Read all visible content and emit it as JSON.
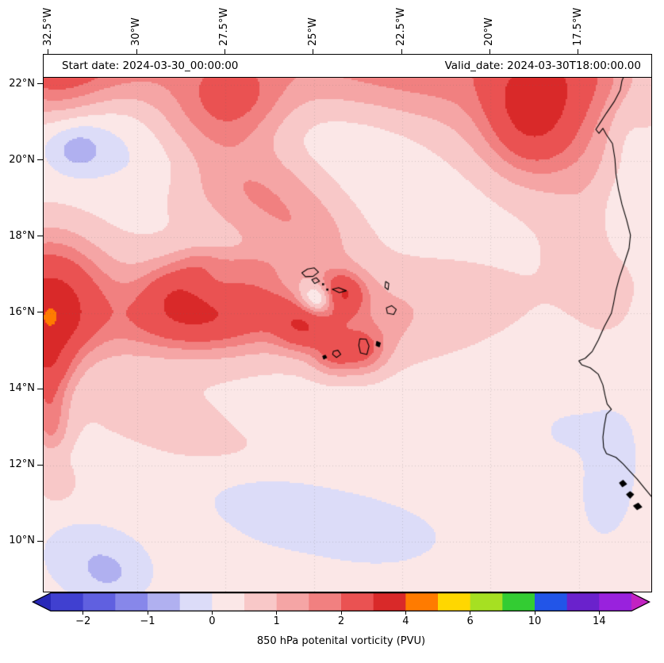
{
  "figure": {
    "start_date_label": "Start date: 2024-03-30_00:00:00",
    "valid_date_label": "Valid_date: 2024-03-30T18:00:00.00",
    "colorbar_label": "850 hPa potenital vorticity (PVU)"
  },
  "axes": {
    "top_tick_labels": [
      {
        "label": "32.5°W",
        "lon": -32.5
      },
      {
        "label": "30°W",
        "lon": -30
      },
      {
        "label": "27.5°W",
        "lon": -27.5
      },
      {
        "label": "25°W",
        "lon": -25
      },
      {
        "label": "22.5°W",
        "lon": -22.5
      },
      {
        "label": "20°W",
        "lon": -20
      },
      {
        "label": "17.5°W",
        "lon": -17.5
      }
    ],
    "left_tick_labels": [
      {
        "label": "22°N",
        "lat": 22
      },
      {
        "label": "20°N",
        "lat": 20
      },
      {
        "label": "18°N",
        "lat": 18
      },
      {
        "label": "16°N",
        "lat": 16
      },
      {
        "label": "14°N",
        "lat": 14
      },
      {
        "label": "12°N",
        "lat": 12
      },
      {
        "label": "10°N",
        "lat": 10
      }
    ],
    "grid_lons": [
      -30,
      -27.5,
      -25,
      -22.5,
      -20,
      -17.5
    ],
    "grid_lats": [
      10,
      12,
      14,
      16,
      18,
      20,
      22
    ]
  },
  "chart_data": {
    "type": "heatmap",
    "title": "850 hPa potenital vorticity (PVU)",
    "units": "PVU",
    "lon_range": [
      -32.65,
      -15.45
    ],
    "lat_range": [
      8.7,
      22.78
    ],
    "levels": [
      -2.5,
      -2,
      -1.5,
      -1,
      -0.5,
      0,
      0.5,
      1,
      1.5,
      2,
      3,
      4,
      5,
      6,
      8,
      10,
      12,
      14,
      16
    ],
    "segment_colors": [
      "#4040d0",
      "#6060e0",
      "#8787ea",
      "#b0b0f0",
      "#dcdcf8",
      "#fbe7e7",
      "#f8c8c8",
      "#f5a5a5",
      "#f18080",
      "#ea5252",
      "#d92929",
      "#ff7b00",
      "#ffd700",
      "#a6e022",
      "#33cc33",
      "#2255e8",
      "#6a22cc",
      "#9922dd"
    ],
    "under_color": "#2828b8",
    "over_color": "#c222c2",
    "colorbar_ticks": [
      {
        "label": "−2",
        "value": -2
      },
      {
        "label": "−1",
        "value": -1
      },
      {
        "label": "0",
        "value": 0
      },
      {
        "label": "1",
        "value": 1
      },
      {
        "label": "2",
        "value": 2
      },
      {
        "label": "4",
        "value": 4
      },
      {
        "label": "6",
        "value": 6
      },
      {
        "label": "10",
        "value": 10
      },
      {
        "label": "14",
        "value": 14
      }
    ],
    "field_base": 0.3,
    "field_blobs_format": "[lon_deg, lat_deg, sigma_lon_deg, sigma_lat_deg, amplitude_PVU]",
    "field_blobs": [
      [
        -27.0,
        23.3,
        6.0,
        1.6,
        0.95
      ],
      [
        -32.4,
        22.4,
        1.1,
        1.0,
        1.6
      ],
      [
        -27.2,
        21.6,
        1.0,
        0.75,
        1.2
      ],
      [
        -30.5,
        22.8,
        1.5,
        0.9,
        0.7
      ],
      [
        -18.8,
        21.4,
        0.9,
        1.1,
        2.5
      ],
      [
        -20.8,
        22.3,
        1.8,
        1.0,
        0.7
      ],
      [
        -17.3,
        22.4,
        1.0,
        0.8,
        0.9
      ],
      [
        -23.5,
        22.6,
        2.0,
        1.0,
        0.55
      ],
      [
        -28.6,
        21.2,
        1.3,
        0.85,
        0.6
      ],
      [
        -27.8,
        20.1,
        1.3,
        0.9,
        0.8
      ],
      [
        -26.6,
        19.2,
        1.2,
        0.85,
        0.75
      ],
      [
        -25.5,
        18.4,
        1.1,
        0.8,
        0.6
      ],
      [
        -24.8,
        17.8,
        1.0,
        0.7,
        0.4
      ],
      [
        -19.5,
        20.3,
        2.0,
        1.2,
        0.5
      ],
      [
        -30.0,
        16.1,
        3.5,
        1.0,
        1.0
      ],
      [
        -32.5,
        16.5,
        1.0,
        1.1,
        2.2
      ],
      [
        -32.5,
        15.6,
        0.7,
        0.6,
        1.2
      ],
      [
        -28.9,
        16.65,
        0.65,
        0.5,
        1.2
      ],
      [
        -28.4,
        15.8,
        1.3,
        0.55,
        1.4
      ],
      [
        -26.8,
        16.1,
        1.4,
        0.7,
        0.7
      ],
      [
        -25.3,
        15.65,
        0.55,
        0.45,
        1.7
      ],
      [
        -24.25,
        16.5,
        0.45,
        0.38,
        2.2
      ],
      [
        -23.0,
        15.9,
        1.4,
        0.8,
        0.45
      ],
      [
        -20.8,
        16.2,
        2.2,
        1.1,
        0.3
      ],
      [
        -24.0,
        15.2,
        0.8,
        0.6,
        0.6
      ],
      [
        -23.6,
        15.0,
        0.45,
        0.4,
        1.1
      ],
      [
        -24.45,
        14.85,
        0.4,
        0.33,
        1.0
      ],
      [
        -25.8,
        16.55,
        1.2,
        0.6,
        0.5
      ],
      [
        -24.85,
        16.35,
        0.38,
        0.3,
        -2.3
      ],
      [
        -25.4,
        16.78,
        0.5,
        0.35,
        -0.5
      ],
      [
        -32.55,
        14.55,
        0.5,
        0.5,
        1.6
      ],
      [
        -32.5,
        13.6,
        0.4,
        0.45,
        1.1
      ],
      [
        -32.45,
        12.85,
        0.35,
        0.4,
        0.9
      ],
      [
        -32.3,
        11.6,
        0.35,
        0.4,
        0.5
      ],
      [
        -17.2,
        20.2,
        1.0,
        2.2,
        0.45
      ],
      [
        -16.6,
        17.5,
        0.8,
        2.0,
        0.25
      ],
      [
        -30.8,
        21.0,
        2.4,
        0.8,
        -0.7
      ],
      [
        -31.7,
        20.3,
        0.55,
        0.45,
        -0.8
      ],
      [
        -29.2,
        19.9,
        1.6,
        0.6,
        -0.4
      ],
      [
        -24.5,
        20.8,
        2.5,
        0.8,
        -0.35
      ],
      [
        -16.3,
        18.7,
        0.55,
        0.9,
        -0.55
      ],
      [
        -16.2,
        20.6,
        0.4,
        0.7,
        -0.3
      ],
      [
        -16.5,
        12.2,
        0.5,
        0.9,
        -0.5
      ],
      [
        -16.8,
        11.1,
        0.45,
        0.7,
        -0.45
      ],
      [
        -31.4,
        9.8,
        1.0,
        0.8,
        -0.55
      ],
      [
        -30.7,
        9.1,
        0.7,
        0.5,
        -0.5
      ],
      [
        -24.9,
        10.6,
        1.6,
        0.55,
        -0.5
      ],
      [
        -26.6,
        11.2,
        1.2,
        0.45,
        -0.35
      ],
      [
        -23.0,
        10.1,
        1.1,
        0.45,
        -0.35
      ],
      [
        -21.5,
        19.3,
        2.2,
        0.9,
        -0.25
      ],
      [
        -24.0,
        9.3,
        6.0,
        1.2,
        -0.15
      ],
      [
        -19.0,
        14.0,
        3.0,
        1.5,
        -0.1
      ],
      [
        -22.5,
        12.7,
        2.5,
        1.0,
        -0.1
      ],
      [
        -29.5,
        13.3,
        2.0,
        0.6,
        0.25
      ],
      [
        -27.5,
        12.4,
        1.8,
        0.5,
        0.2
      ],
      [
        -31.0,
        11.0,
        1.2,
        0.6,
        0.2
      ],
      [
        -28.2,
        17.35,
        0.5,
        0.3,
        0.6
      ],
      [
        -27.0,
        17.2,
        0.6,
        0.3,
        0.5
      ],
      [
        -17.6,
        12.9,
        0.8,
        0.5,
        -0.3
      ]
    ],
    "coastlines": {
      "africa": [
        [
          -16.05,
          22.8
        ],
        [
          -16.12,
          22.45
        ],
        [
          -16.28,
          22.1
        ],
        [
          -16.33,
          21.85
        ],
        [
          -16.5,
          21.55
        ],
        [
          -16.72,
          21.25
        ],
        [
          -16.88,
          21.02
        ],
        [
          -17.02,
          20.82
        ],
        [
          -16.93,
          20.72
        ],
        [
          -16.82,
          20.85
        ],
        [
          -16.72,
          20.68
        ],
        [
          -16.55,
          20.45
        ],
        [
          -16.48,
          20.05
        ],
        [
          -16.45,
          19.65
        ],
        [
          -16.38,
          19.25
        ],
        [
          -16.28,
          18.85
        ],
        [
          -16.15,
          18.45
        ],
        [
          -16.04,
          18.05
        ],
        [
          -16.08,
          17.7
        ],
        [
          -16.22,
          17.3
        ],
        [
          -16.35,
          16.95
        ],
        [
          -16.45,
          16.6
        ],
        [
          -16.52,
          16.25
        ],
        [
          -16.58,
          16.0
        ],
        [
          -16.78,
          15.65
        ],
        [
          -16.95,
          15.3
        ],
        [
          -17.12,
          15.0
        ],
        [
          -17.32,
          14.82
        ],
        [
          -17.5,
          14.75
        ],
        [
          -17.42,
          14.65
        ],
        [
          -17.18,
          14.57
        ],
        [
          -16.95,
          14.4
        ],
        [
          -16.82,
          14.12
        ],
        [
          -16.76,
          13.85
        ],
        [
          -16.7,
          13.62
        ],
        [
          -16.58,
          13.48
        ],
        [
          -16.72,
          13.35
        ],
        [
          -16.78,
          13.05
        ],
        [
          -16.82,
          12.75
        ],
        [
          -16.8,
          12.48
        ],
        [
          -16.72,
          12.32
        ],
        [
          -16.45,
          12.22
        ],
        [
          -16.25,
          12.05
        ],
        [
          -16.05,
          11.85
        ],
        [
          -15.85,
          11.65
        ],
        [
          -15.65,
          11.42
        ],
        [
          -15.45,
          11.2
        ]
      ],
      "cape_verde_stroked": [
        [
          [
            -25.34,
            17.06
          ],
          [
            -25.18,
            17.16
          ],
          [
            -24.99,
            17.19
          ],
          [
            -24.87,
            17.08
          ],
          [
            -25.02,
            16.97
          ],
          [
            -25.24,
            16.96
          ]
        ],
        [
          [
            -25.06,
            16.88
          ],
          [
            -24.93,
            16.93
          ],
          [
            -24.84,
            16.84
          ],
          [
            -24.98,
            16.78
          ]
        ],
        [
          [
            -24.48,
            16.63
          ],
          [
            -24.3,
            16.67
          ],
          [
            -24.08,
            16.59
          ],
          [
            -24.28,
            16.54
          ]
        ],
        [
          [
            -22.97,
            16.83
          ],
          [
            -22.88,
            16.78
          ],
          [
            -22.9,
            16.62
          ],
          [
            -22.99,
            16.68
          ]
        ],
        [
          [
            -22.95,
            16.14
          ],
          [
            -22.8,
            16.2
          ],
          [
            -22.67,
            16.1
          ],
          [
            -22.74,
            15.97
          ],
          [
            -22.92,
            16.0
          ]
        ],
        [
          [
            -23.7,
            15.33
          ],
          [
            -23.52,
            15.32
          ],
          [
            -23.44,
            15.14
          ],
          [
            -23.5,
            14.92
          ],
          [
            -23.68,
            14.96
          ],
          [
            -23.73,
            15.16
          ]
        ],
        [
          [
            -24.45,
            15.0
          ],
          [
            -24.32,
            15.03
          ],
          [
            -24.24,
            14.92
          ],
          [
            -24.36,
            14.84
          ],
          [
            -24.47,
            14.92
          ]
        ]
      ],
      "filled_islands": [
        [
          [
            -24.75,
            14.87
          ],
          [
            -24.68,
            14.9
          ],
          [
            -24.64,
            14.84
          ],
          [
            -24.72,
            14.8
          ]
        ],
        [
          [
            -23.22,
            15.26
          ],
          [
            -23.12,
            15.22
          ],
          [
            -23.15,
            15.12
          ],
          [
            -23.24,
            15.16
          ]
        ],
        [
          [
            -16.15,
            11.25
          ],
          [
            -16.05,
            11.32
          ],
          [
            -15.95,
            11.25
          ],
          [
            -16.05,
            11.15
          ]
        ],
        [
          [
            -15.95,
            10.95
          ],
          [
            -15.82,
            11.02
          ],
          [
            -15.72,
            10.92
          ],
          [
            -15.85,
            10.85
          ]
        ],
        [
          [
            -16.35,
            11.55
          ],
          [
            -16.25,
            11.62
          ],
          [
            -16.15,
            11.52
          ],
          [
            -16.27,
            11.45
          ]
        ]
      ],
      "islet_dots": [
        [
          -24.74,
          16.76
        ],
        [
          -24.62,
          16.62
        ]
      ]
    }
  }
}
